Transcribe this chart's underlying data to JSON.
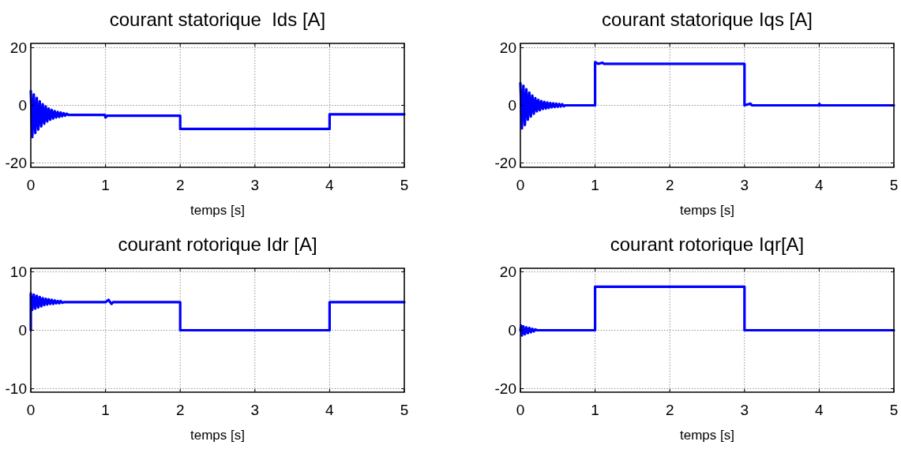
{
  "chart_data": [
    {
      "type": "line",
      "title": "courant statorique  Ids [A]",
      "xlabel": "temps [s]",
      "xlim": [
        0,
        5
      ],
      "xticks": [
        0,
        1,
        2,
        3,
        4,
        5
      ],
      "ylim": [
        -21.5,
        21.5
      ],
      "yticks": [
        -20,
        0,
        20
      ],
      "grid": true,
      "series": [
        {
          "color": "#0000ff",
          "x": [
            0,
            0.02,
            0.04,
            0.06,
            0.08,
            0.1,
            0.12,
            0.14,
            0.16,
            0.18,
            0.2,
            0.22,
            0.24,
            0.26,
            0.28,
            0.3,
            0.32,
            0.34,
            0.36,
            0.38,
            0.4,
            0.42,
            0.44,
            0.46,
            0.48,
            0.5,
            0.99,
            1.0,
            1.02,
            2.0,
            2.0,
            4.0,
            4.0,
            5.0
          ],
          "values": [
            5,
            -11,
            3.8,
            -9.6,
            2.6,
            -8.4,
            1.4,
            -7.3,
            0.4,
            -6.4,
            -0.4,
            -5.6,
            -1.1,
            -5,
            -1.6,
            -4.6,
            -2,
            -4.2,
            -2.3,
            -4,
            -2.5,
            -3.8,
            -2.7,
            -3.6,
            -2.9,
            -3.3,
            -3.3,
            -4.2,
            -3.6,
            -3.6,
            -8.2,
            -8.2,
            -3.1,
            -3.1
          ]
        }
      ]
    },
    {
      "type": "line",
      "title": "courant statorique Iqs [A]",
      "xlabel": "temps [s]",
      "xlim": [
        0,
        5
      ],
      "xticks": [
        0,
        1,
        2,
        3,
        4,
        5
      ],
      "ylim": [
        -21.5,
        21.5
      ],
      "yticks": [
        -20,
        0,
        20
      ],
      "grid": true,
      "series": [
        {
          "color": "#0000ff",
          "x": [
            0,
            0.02,
            0.04,
            0.06,
            0.08,
            0.1,
            0.12,
            0.14,
            0.16,
            0.18,
            0.2,
            0.22,
            0.24,
            0.26,
            0.28,
            0.3,
            0.32,
            0.34,
            0.36,
            0.38,
            0.4,
            0.42,
            0.44,
            0.46,
            0.48,
            0.5,
            0.52,
            0.54,
            0.56,
            0.58,
            0.6,
            1.0,
            1.0,
            1.04,
            1.1,
            1.12,
            3.0,
            3.0,
            3.08,
            3.1,
            4.0,
            4.0,
            4.02,
            5.0
          ],
          "values": [
            7.7,
            -8,
            6.8,
            -6.8,
            5.6,
            -5,
            4.4,
            -3.9,
            3.4,
            -2.9,
            2.5,
            -2.1,
            1.9,
            -1.7,
            1.5,
            -1.3,
            1.2,
            -1.1,
            1,
            -0.9,
            0.8,
            -0.7,
            0.7,
            -0.6,
            0.6,
            -0.5,
            0.5,
            -0.4,
            0.4,
            -0.3,
            0,
            0,
            15,
            14.4,
            14.8,
            14.4,
            14.4,
            0,
            0.6,
            0,
            0,
            0.5,
            0,
            0
          ]
        }
      ]
    },
    {
      "type": "line",
      "title": "courant rotorique Idr [A]",
      "xlabel": "temps [s]",
      "xlim": [
        0,
        5
      ],
      "xticks": [
        0,
        1,
        2,
        3,
        4,
        5
      ],
      "ylim": [
        -10.6,
        10.6
      ],
      "yticks": [
        -10,
        0,
        10
      ],
      "grid": true,
      "series": [
        {
          "color": "#0000ff",
          "x": [
            0,
            0,
            0.02,
            0.04,
            0.06,
            0.08,
            0.1,
            0.12,
            0.14,
            0.16,
            0.18,
            0.2,
            0.22,
            0.24,
            0.26,
            0.28,
            0.3,
            0.32,
            0.34,
            0.36,
            0.38,
            0.4,
            0.42,
            0.44,
            1.0,
            1.04,
            1.08,
            1.1,
            2.0,
            2.0,
            4.0,
            4.0,
            5.0
          ],
          "values": [
            0,
            6.3,
            3.5,
            6.1,
            3.7,
            5.9,
            3.9,
            5.7,
            4.1,
            5.5,
            4.3,
            5.4,
            4.4,
            5.3,
            4.5,
            5.2,
            4.5,
            5.1,
            4.6,
            5,
            4.6,
            5,
            4.7,
            4.8,
            4.8,
            5.2,
            4.5,
            4.8,
            4.8,
            0,
            0,
            4.8,
            4.8
          ]
        }
      ]
    },
    {
      "type": "line",
      "title": "courant rotorique Iqr[A]",
      "xlabel": "temps [s]",
      "xlim": [
        0,
        5
      ],
      "xticks": [
        0,
        1,
        2,
        3,
        4,
        5
      ],
      "ylim": [
        -21.2,
        21.2
      ],
      "yticks": [
        -20,
        0,
        20
      ],
      "grid": true,
      "series": [
        {
          "color": "#0000ff",
          "x": [
            0,
            0.01,
            0.02,
            0.04,
            0.06,
            0.08,
            0.1,
            0.12,
            0.14,
            0.16,
            0.18,
            0.2,
            0.22,
            1.0,
            1.0,
            3.0,
            3.0,
            5.0
          ],
          "values": [
            0,
            1.6,
            -1.8,
            1.3,
            -1.4,
            1,
            -1,
            0.8,
            -0.7,
            0.5,
            -0.4,
            0.3,
            0,
            0,
            14.9,
            14.9,
            0,
            0
          ]
        }
      ]
    }
  ]
}
